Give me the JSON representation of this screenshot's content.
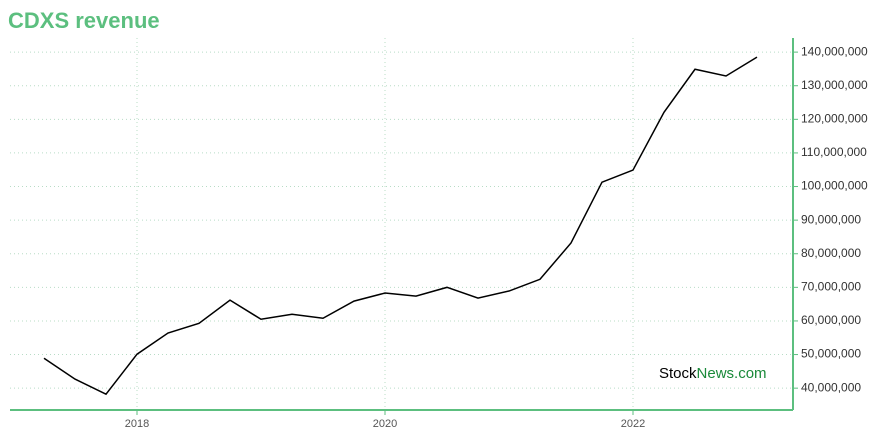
{
  "chart_data": {
    "type": "line",
    "title": "CDXS revenue",
    "categories": [
      null,
      null,
      null,
      "2018",
      null,
      null,
      null,
      null,
      null,
      null,
      null,
      "2020",
      null,
      null,
      null,
      null,
      null,
      null,
      null,
      "2022",
      null,
      null,
      null,
      null
    ],
    "series": [
      {
        "name": "CDXS",
        "color": "#000000",
        "values": [
          48900000,
          42700000,
          38200000,
          50100000,
          56400000,
          59300000,
          66200000,
          60500000,
          62000000,
          60800000,
          65900000,
          68300000,
          67400000,
          70000000,
          66800000,
          68900000,
          72400000,
          83200000,
          101300000,
          104900000,
          122100000,
          134900000,
          132900000,
          138500000
        ]
      }
    ],
    "ylim": [
      33500000,
      144200000
    ],
    "yticks": [
      {
        "value": 40000000,
        "label": "40,000,000"
      },
      {
        "value": 50000000,
        "label": "50,000,000"
      },
      {
        "value": 60000000,
        "label": "60,000,000"
      },
      {
        "value": 70000000,
        "label": "70,000,000"
      },
      {
        "value": 80000000,
        "label": "80,000,000"
      },
      {
        "value": 90000000,
        "label": "90,000,000"
      },
      {
        "value": 100000000,
        "label": "100,000,000"
      },
      {
        "value": 110000000,
        "label": "110,000,000"
      },
      {
        "value": 120000000,
        "label": "120,000,000"
      },
      {
        "value": 130000000,
        "label": "130,000,000"
      },
      {
        "value": 140000000,
        "label": "140,000,000"
      }
    ],
    "grid": true,
    "axis_color": "#5cbf7f",
    "watermark": [
      "Stock",
      "News.com"
    ]
  }
}
